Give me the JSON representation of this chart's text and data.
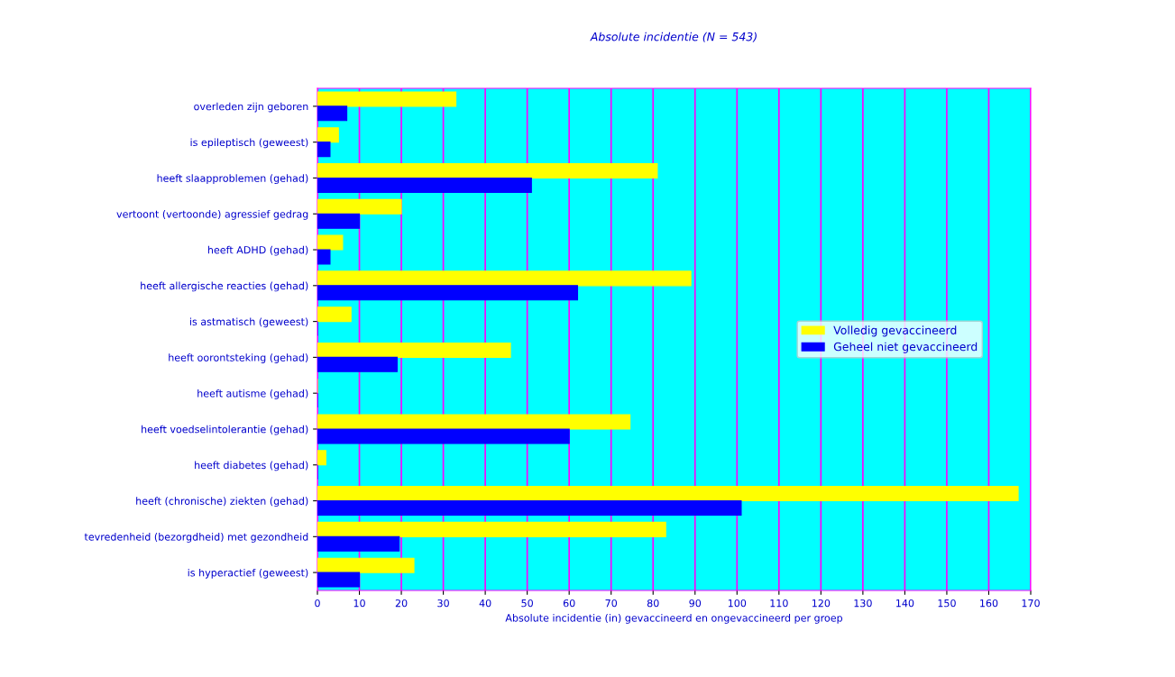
{
  "chart_data": {
    "type": "bar",
    "orientation": "horizontal",
    "title": "Absolute incidentie (N = 543)",
    "xlabel": "Absolute incidentie (in) gevaccineerd en ongevaccineerd per groep",
    "categories": [
      "overleden zijn geboren",
      "is epileptisch (geweest)",
      "heeft slaapproblemen (gehad)",
      "vertoont (vertoonde) agressief gedrag",
      "heeft ADHD (gehad)",
      "heeft allergische reacties (gehad)",
      "is astmatisch (geweest)",
      "heeft oorontsteking (gehad)",
      "heeft autisme (gehad)",
      "heeft voedselintolerantie (gehad)",
      "heeft diabetes (gehad)",
      "heeft (chronische) ziekten (gehad)",
      "tevredenheid (bezorgdheid) met gezondheid",
      "is hyperactief (geweest)"
    ],
    "series": [
      {
        "name": "Volledig gevaccineerd",
        "color": "#ffff00",
        "values": [
          33,
          5,
          81,
          20,
          6,
          89,
          8,
          46,
          0,
          74.5,
          2,
          167,
          83,
          23
        ]
      },
      {
        "name": "Geheel niet gevaccineerd",
        "color": "#0000ff",
        "values": [
          7,
          3,
          51,
          10,
          3,
          62,
          0,
          19,
          0,
          60,
          0,
          101,
          19.5,
          10
        ]
      }
    ],
    "xlim": [
      0,
      170
    ],
    "xticks": [
      0,
      10,
      20,
      30,
      40,
      50,
      60,
      70,
      80,
      90,
      100,
      110,
      120,
      130,
      140,
      150,
      160,
      170
    ],
    "grid": "x",
    "legend": "right"
  }
}
